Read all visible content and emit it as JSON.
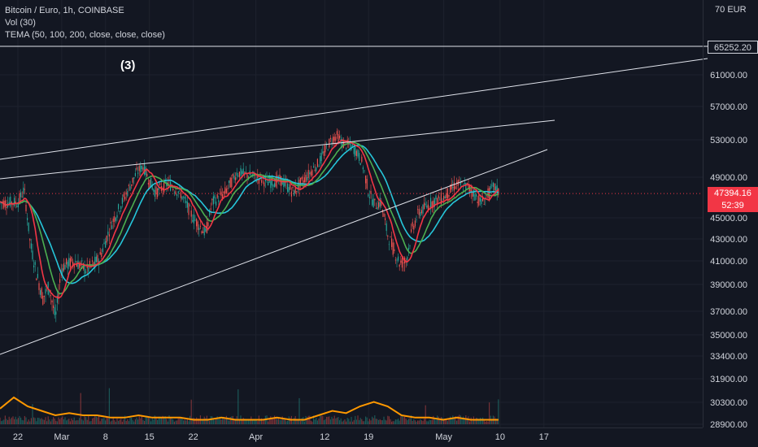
{
  "legend": {
    "symbol": "Bitcoin / Euro, 1h, COINBASE",
    "volume": "Vol (30)",
    "tema": "TEMA (50, 100, 200, close, close, close)"
  },
  "annotation": "(3)",
  "currency_label": "EUR",
  "currency_prefix": "70",
  "level_tag": "65252.20",
  "current_price_tag": "47394.16",
  "countdown_tag": "52:39",
  "colors": {
    "background": "#131722",
    "candle_up": "#26a69a",
    "candle_down": "#ef5350",
    "tema_fast": "#f23645",
    "tema_mid": "#4caf50",
    "tema_slow": "#26c6da",
    "volume_ma": "#ff9800",
    "trendline": "#e0e3eb",
    "current_price": "#f23645"
  },
  "chart_data": {
    "type": "line",
    "title": "Bitcoin / Euro, 1h, COINBASE",
    "price_ticks": [
      "61000.00",
      "57000.00",
      "53000.00",
      "49000.00",
      "45000.00",
      "43000.00",
      "41000.00",
      "39000.00",
      "37000.00",
      "35000.00",
      "33400.00",
      "31900.00",
      "30300.00",
      "28900.00"
    ],
    "x_ticks": [
      "22",
      "Mar",
      "8",
      "15",
      "22",
      "Apr",
      "12",
      "19",
      "May",
      "10",
      "17"
    ],
    "series": [
      {
        "name": "price",
        "x": [
          "02-22",
          "02-23",
          "02-24",
          "02-25",
          "02-26",
          "02-27",
          "02-28",
          "03-01",
          "03-03",
          "03-05",
          "03-07",
          "03-09",
          "03-11",
          "03-13",
          "03-14",
          "03-15",
          "03-16",
          "03-18",
          "03-20",
          "03-22",
          "03-24",
          "03-25",
          "03-27",
          "03-29",
          "03-31",
          "04-01",
          "04-03",
          "04-05",
          "04-07",
          "04-09",
          "04-11",
          "04-13",
          "04-14",
          "04-15",
          "04-16",
          "04-17",
          "04-18",
          "04-19",
          "04-20",
          "04-21",
          "04-22",
          "04-23",
          "04-24",
          "04-25",
          "04-26",
          "04-27",
          "04-29",
          "05-01",
          "05-03",
          "05-05",
          "05-07",
          "05-09",
          "05-10"
        ],
        "values": [
          46500,
          47800,
          42500,
          39800,
          38000,
          38900,
          36400,
          40500,
          41000,
          40200,
          41200,
          44500,
          47000,
          49500,
          50200,
          48600,
          47500,
          48400,
          47400,
          45000,
          43500,
          46500,
          47400,
          49500,
          49200,
          49000,
          48500,
          48700,
          47500,
          49000,
          50500,
          53000,
          53500,
          52500,
          52400,
          51800,
          50500,
          47500,
          46300,
          46500,
          43500,
          42000,
          40800,
          41000,
          44000,
          45500,
          46500,
          47000,
          48300,
          48000,
          46500,
          48000,
          47394
        ]
      }
    ],
    "volume_ma": [
      0.35,
      0.6,
      0.4,
      0.3,
      0.2,
      0.25,
      0.2,
      0.2,
      0.15,
      0.15,
      0.2,
      0.15,
      0.15,
      0.15,
      0.1,
      0.1,
      0.15,
      0.1,
      0.1,
      0.1,
      0.15,
      0.1,
      0.1,
      0.2,
      0.3,
      0.25,
      0.4,
      0.5,
      0.4,
      0.2,
      0.15,
      0.15,
      0.1,
      0.15,
      0.1,
      0.1,
      0.1
    ],
    "horizontal_level": 65252.2,
    "current_price": 47394.16,
    "grid": true
  }
}
